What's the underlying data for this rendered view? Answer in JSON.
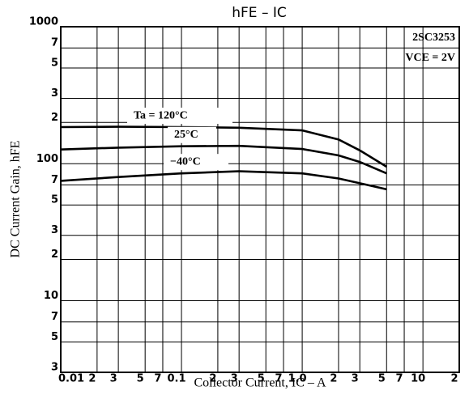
{
  "chart_data": {
    "type": "line",
    "title": "hFE – IC",
    "x_label": "Collector Current, IC – A",
    "y_label": "DC Current Gain, hFE",
    "annotations": [
      "2SC3253",
      "VCE = 2V"
    ],
    "log_x": true,
    "log_y": true,
    "grid": true,
    "xlim": [
      0.01,
      20
    ],
    "ylim": [
      3,
      1000
    ],
    "xticks": [
      {
        "value": 0.01,
        "label": "0.01"
      },
      {
        "value": 0.02,
        "label": "2"
      },
      {
        "value": 0.03,
        "label": "3"
      },
      {
        "value": 0.05,
        "label": "5"
      },
      {
        "value": 0.07,
        "label": "7"
      },
      0.1,
      {
        "value": 0.2,
        "label": "2"
      },
      {
        "value": 0.3,
        "label": "3"
      },
      {
        "value": 0.5,
        "label": "5"
      },
      {
        "value": 0.7,
        "label": "7"
      },
      {
        "value": 1,
        "label": "1.0"
      },
      2,
      3,
      5,
      7,
      10,
      {
        "value": 20,
        "label": "2"
      }
    ],
    "yticks": [
      3,
      5,
      7,
      10,
      {
        "value": 20,
        "label": "2"
      },
      {
        "value": 30,
        "label": "3"
      },
      {
        "value": 50,
        "label": "5"
      },
      {
        "value": 70,
        "label": "7"
      },
      100,
      {
        "value": 200,
        "label": "2"
      },
      {
        "value": 300,
        "label": "3"
      },
      {
        "value": 500,
        "label": "5"
      },
      {
        "value": 700,
        "label": "7"
      },
      1000
    ],
    "x": [
      0.01,
      0.03,
      0.1,
      0.3,
      1,
      2,
      3,
      5
    ],
    "series": [
      {
        "name": "Ta = 120°C",
        "color": "#000000",
        "values": [
          185,
          186,
          185,
          183,
          175,
          150,
          125,
          95
        ]
      },
      {
        "name": "25°C",
        "color": "#000000",
        "values": [
          127,
          131,
          134,
          135,
          128,
          115,
          103,
          85
        ]
      },
      {
        "name": "−40°C",
        "color": "#000000",
        "values": [
          75,
          80,
          85,
          88,
          85,
          78,
          72,
          65
        ]
      }
    ]
  }
}
